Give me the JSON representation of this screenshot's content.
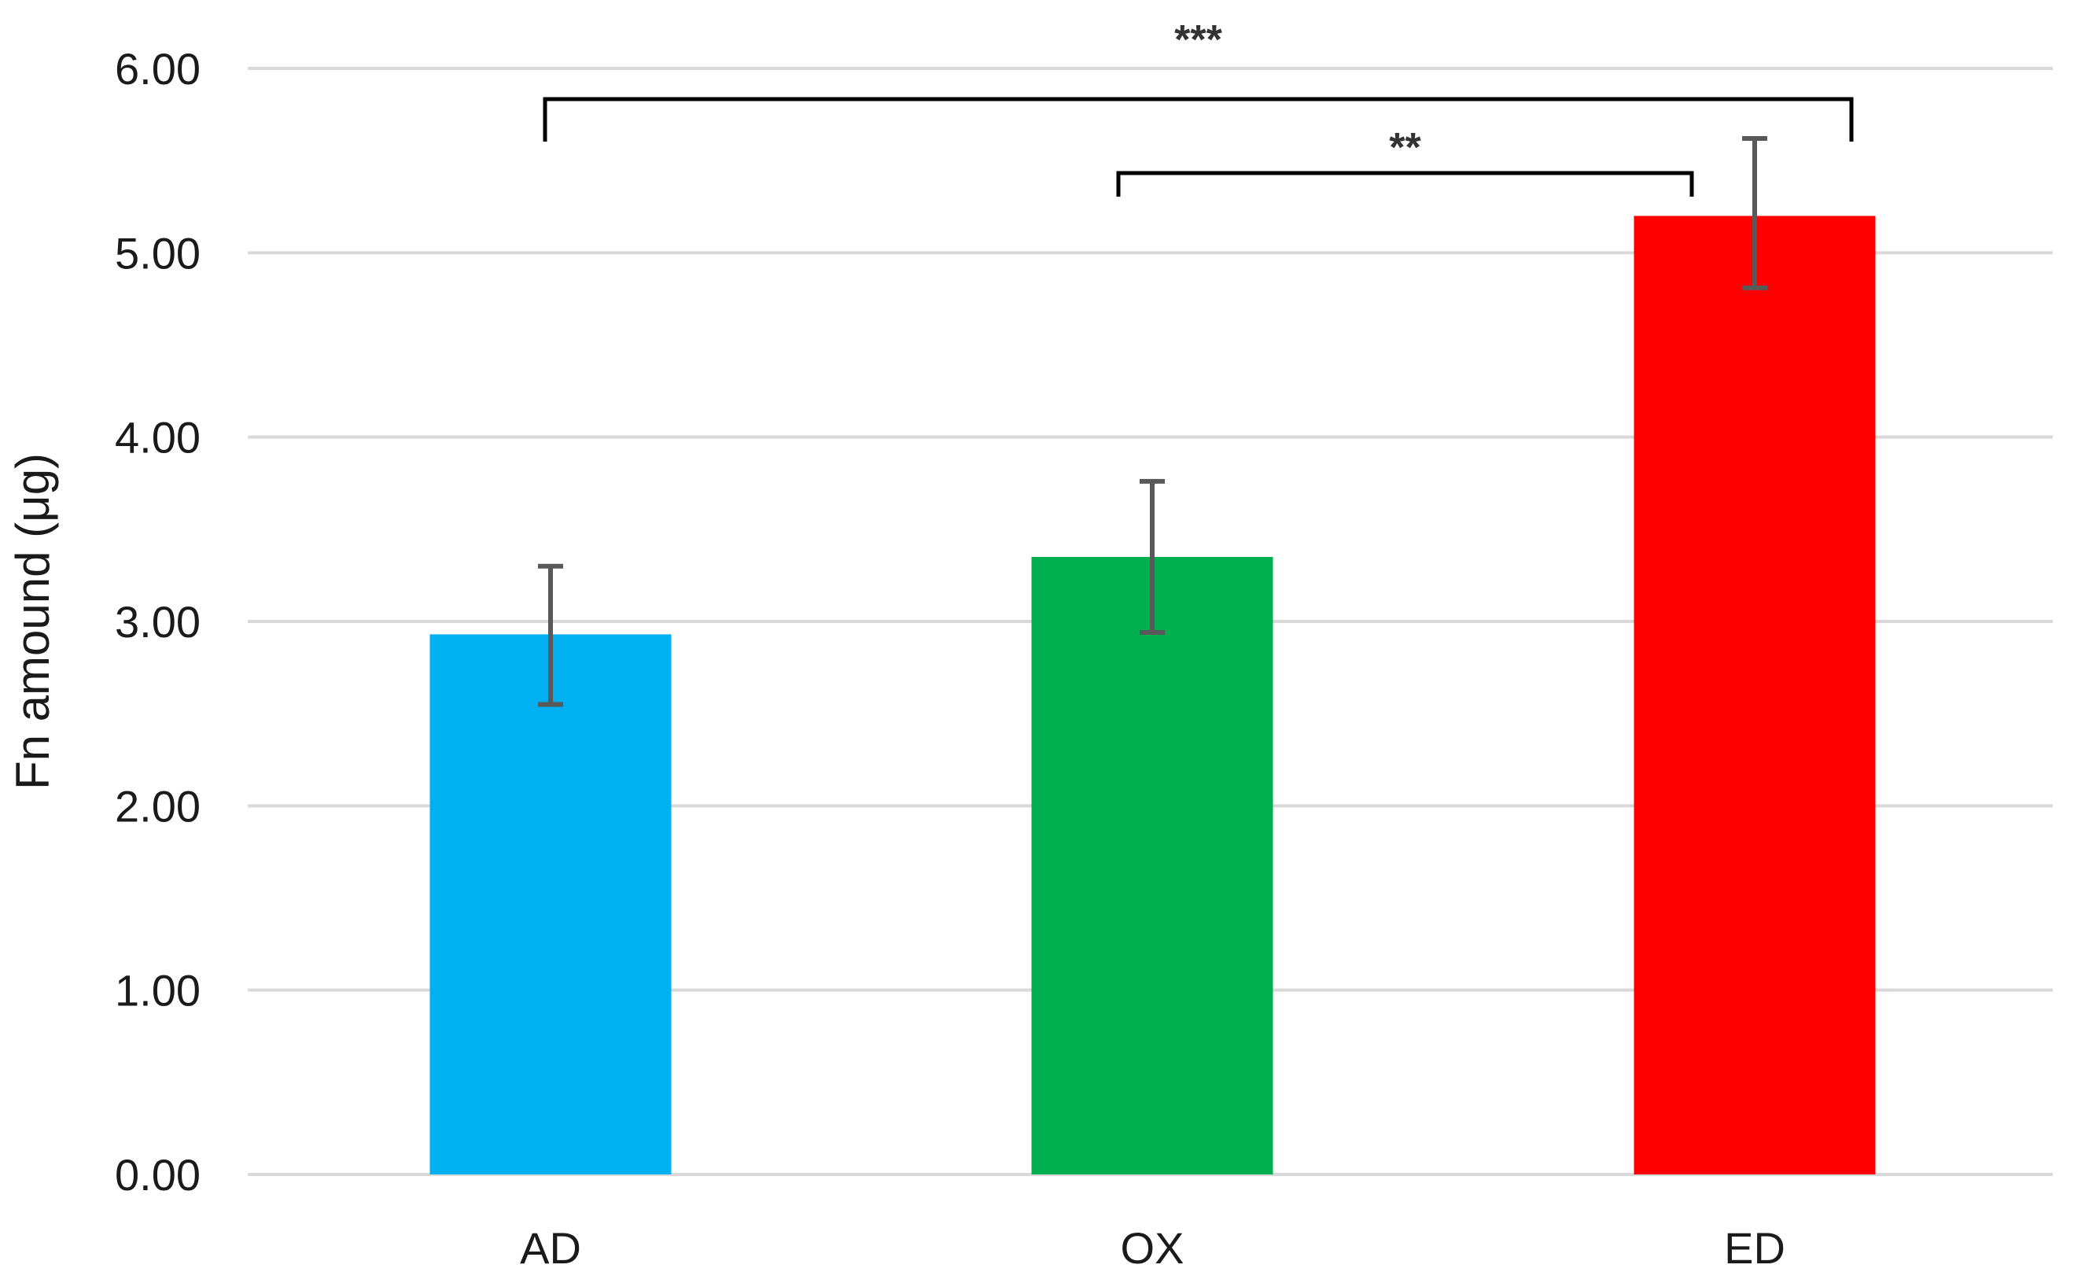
{
  "chart_data": {
    "type": "bar",
    "title": "",
    "xlabel": "",
    "ylabel": "Fn  amound (μg)",
    "ylim": [
      0,
      6
    ],
    "yticks": [
      0,
      1,
      2,
      3,
      4,
      5,
      6
    ],
    "ytick_labels": [
      "0.00",
      "1.00",
      "2.00",
      "3.00",
      "4.00",
      "5.00",
      "6.00"
    ],
    "grid": true,
    "legend": "none",
    "categories": [
      "AD",
      "OX",
      "ED"
    ],
    "series": [
      {
        "values": [
          2.93,
          3.35,
          5.2
        ],
        "error_low": [
          2.55,
          2.94,
          4.81
        ],
        "error_high": [
          3.3,
          3.76,
          5.62
        ],
        "colors": [
          "#00b0f0",
          "#00b050",
          "#ff0000"
        ]
      }
    ],
    "significance": [
      {
        "from": "OX",
        "to": "ED",
        "label": "**"
      },
      {
        "from": "AD",
        "to": "ED",
        "label": "***"
      }
    ]
  }
}
